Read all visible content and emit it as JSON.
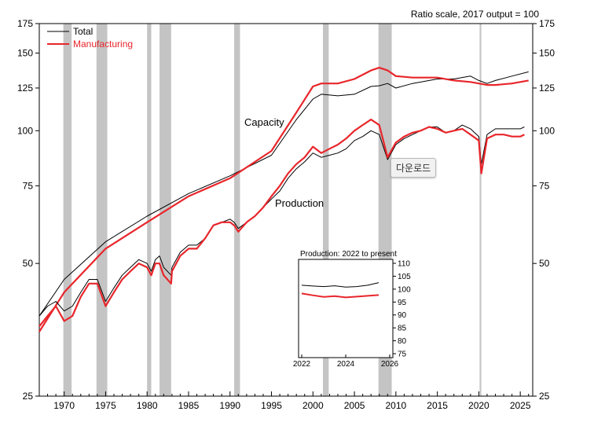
{
  "chart_data": {
    "type": "line",
    "scale": "log",
    "title": "Ratio scale, 2017 output = 100",
    "xlim": [
      1967,
      2026.5
    ],
    "ylim": [
      25,
      175
    ],
    "yticks": [
      25,
      50,
      75,
      100,
      125,
      150,
      175
    ],
    "xticks": [
      1970,
      1975,
      1980,
      1985,
      1990,
      1995,
      2000,
      2005,
      2010,
      2015,
      2020,
      2025
    ],
    "legend": {
      "placement": "top-left",
      "entries": [
        "Total",
        "Manufacturing"
      ]
    },
    "annotations": [
      "Capacity",
      "Production"
    ],
    "recession_bands": [
      [
        1969.9,
        1970.9
      ],
      [
        1973.9,
        1975.2
      ],
      [
        1980.0,
        1980.5
      ],
      [
        1981.5,
        1982.9
      ],
      [
        1990.5,
        1991.2
      ],
      [
        2001.2,
        2001.9
      ],
      [
        2007.9,
        2009.5
      ],
      [
        2020.1,
        2020.3
      ]
    ],
    "colors": {
      "total": "#000000",
      "manufacturing": "#e8262b",
      "recession": "#c4c4c4"
    },
    "series": [
      {
        "name": "Total capacity",
        "color": "#000000",
        "x": [
          1967,
          1970,
          1975,
          1980,
          1985,
          1990,
          1995,
          1998,
          2000,
          2001,
          2003,
          2005,
          2007,
          2008,
          2009,
          2010,
          2012,
          2015,
          2017,
          2019,
          2020,
          2021,
          2022,
          2024,
          2026
        ],
        "y": [
          38,
          46,
          56,
          64,
          72,
          79,
          88,
          106,
          118,
          121,
          120,
          121,
          126,
          126.5,
          128,
          125,
          128,
          131,
          131,
          133,
          130,
          128,
          130,
          133,
          136
        ]
      },
      {
        "name": "Manufacturing capacity",
        "color": "#e8262b",
        "x": [
          1967,
          1970,
          1975,
          1980,
          1985,
          1990,
          1995,
          1998,
          2000,
          2001,
          2003,
          2005,
          2007,
          2008,
          2009,
          2010,
          2012,
          2015,
          2017,
          2019,
          2020,
          2021,
          2022,
          2024,
          2026
        ],
        "y": [
          35,
          43,
          54,
          62,
          71,
          78,
          90,
          110,
          126,
          128,
          128,
          131,
          137,
          139,
          137,
          133,
          132,
          132,
          130,
          129,
          128,
          127,
          127,
          128,
          130
        ]
      },
      {
        "name": "Total production",
        "color": "#000000",
        "x": [
          1967,
          1968,
          1969,
          1970,
          1971,
          1972,
          1973,
          1974,
          1975,
          1976,
          1977,
          1978,
          1979,
          1980,
          1980.5,
          1981,
          1981.5,
          1982,
          1982.9,
          1983,
          1984,
          1985,
          1986,
          1987,
          1988,
          1989,
          1990,
          1990.5,
          1991,
          1992,
          1993,
          1994,
          1995,
          1996,
          1997,
          1998,
          1999,
          2000,
          2001,
          2002,
          2003,
          2004,
          2005,
          2006,
          2007,
          2008,
          2009,
          2010,
          2011,
          2012,
          2013,
          2014,
          2015,
          2016,
          2017,
          2018,
          2019,
          2020,
          2020.3,
          2021,
          2022,
          2023,
          2024,
          2025,
          2025.5
        ],
        "y": [
          38,
          40,
          41,
          39,
          40,
          43,
          46,
          46,
          41,
          44,
          47,
          49,
          51,
          50,
          48,
          51,
          52,
          49,
          47,
          49,
          53,
          55,
          55,
          57,
          61,
          62,
          63,
          62,
          60,
          62,
          64,
          67,
          70,
          73,
          78,
          82,
          85,
          89,
          87,
          88,
          89,
          91,
          95,
          97,
          100,
          98,
          86,
          93,
          96,
          98,
          100,
          102,
          102,
          99,
          100,
          103,
          101,
          97,
          84,
          98,
          101,
          101,
          101,
          101,
          102
        ]
      },
      {
        "name": "Manufacturing production",
        "color": "#e8262b",
        "x": [
          1967,
          1968,
          1969,
          1970,
          1971,
          1972,
          1973,
          1974,
          1975,
          1976,
          1977,
          1978,
          1979,
          1980,
          1980.5,
          1981,
          1981.5,
          1982,
          1982.9,
          1983,
          1984,
          1985,
          1986,
          1987,
          1988,
          1989,
          1990,
          1990.5,
          1991,
          1992,
          1993,
          1994,
          1995,
          1996,
          1997,
          1998,
          1999,
          2000,
          2001,
          2002,
          2003,
          2004,
          2005,
          2006,
          2007,
          2008,
          2009,
          2010,
          2011,
          2012,
          2013,
          2014,
          2015,
          2016,
          2017,
          2018,
          2019,
          2020,
          2020.3,
          2021,
          2022,
          2023,
          2024,
          2025,
          2025.5
        ],
        "y": [
          36,
          38,
          40,
          37,
          38,
          42,
          45,
          45,
          40,
          43,
          46,
          48,
          50,
          49,
          47,
          50,
          50,
          47,
          45,
          48,
          52,
          54,
          54,
          57,
          61,
          62,
          62,
          61,
          59,
          62,
          64,
          67,
          71,
          75,
          80,
          84,
          87,
          92,
          89,
          91,
          93,
          96,
          100,
          103,
          106,
          103,
          87,
          94,
          97,
          99,
          100,
          102,
          101,
          99,
          100,
          101,
          98,
          95,
          80,
          96,
          98,
          98,
          97,
          97,
          98
        ]
      }
    ],
    "inset": {
      "title": "Production: 2022 to present",
      "xlim": [
        2022,
        2026
      ],
      "ylim": [
        75,
        110
      ],
      "yticks": [
        75,
        80,
        85,
        90,
        95,
        100,
        105,
        110
      ],
      "xticks": [
        2022,
        2024,
        2026
      ],
      "series": [
        {
          "name": "Total production",
          "color": "#000000",
          "x": [
            2022,
            2022.5,
            2023,
            2023.5,
            2024,
            2024.5,
            2025,
            2025.5
          ],
          "y": [
            101.5,
            101.2,
            101.0,
            101.3,
            100.8,
            101.0,
            101.5,
            102.5
          ]
        },
        {
          "name": "Manufacturing production",
          "color": "#e8262b",
          "x": [
            2022,
            2022.5,
            2023,
            2023.5,
            2024,
            2024.5,
            2025,
            2025.5
          ],
          "y": [
            98.3,
            97.6,
            97.0,
            97.3,
            96.8,
            97.1,
            97.4,
            97.7
          ]
        }
      ]
    }
  },
  "ui": {
    "tooltip_text": "다운로드"
  }
}
